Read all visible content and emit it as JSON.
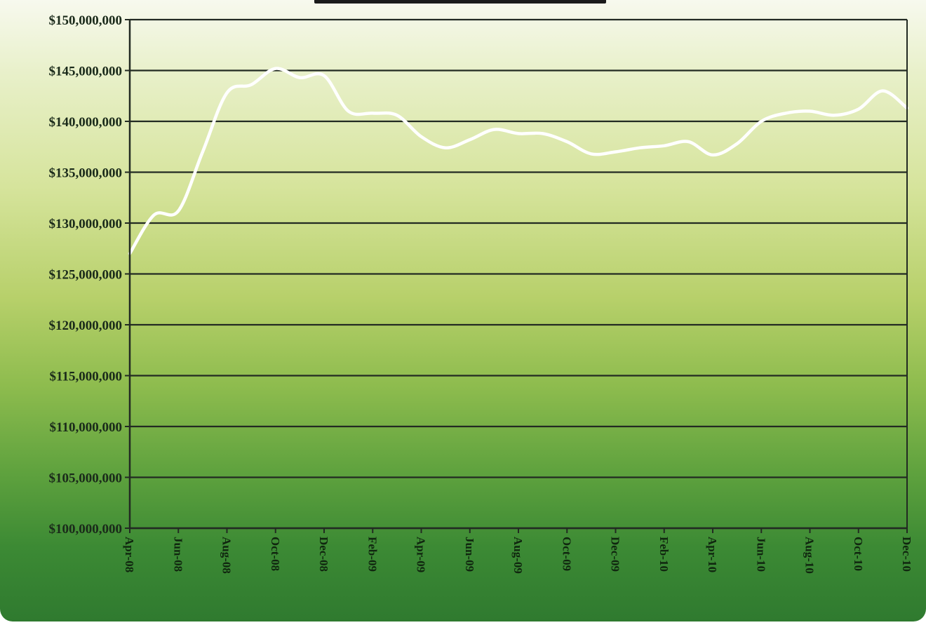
{
  "chart_data": {
    "type": "line",
    "title": "",
    "xlabel": "",
    "ylabel": "",
    "ylim": [
      100000000,
      150000000
    ],
    "y_step": 5000000,
    "y_tick_labels": [
      "$100,000,000",
      "$105,000,000",
      "$110,000,000",
      "$115,000,000",
      "$120,000,000",
      "$125,000,000",
      "$130,000,000",
      "$135,000,000",
      "$140,000,000",
      "$145,000,000",
      "$150,000,000"
    ],
    "x_tick_labels": [
      "Apr-08",
      "Jun-08",
      "Aug-08",
      "Oct-08",
      "Dec-08",
      "Feb-09",
      "Apr-09",
      "Jun-09",
      "Aug-09",
      "Oct-09",
      "Dec-09",
      "Feb-10",
      "Apr-10",
      "Jun-10",
      "Aug-10",
      "Oct-10",
      "Dec-10"
    ],
    "grid": true,
    "legend": "none",
    "line_color": "#ffffff",
    "series": [
      {
        "x": [
          "Apr-08",
          "May-08",
          "Jun-08",
          "Jul-08",
          "Aug-08",
          "Sep-08",
          "Oct-08",
          "Nov-08",
          "Dec-08",
          "Jan-09",
          "Feb-09",
          "Mar-09",
          "Apr-09",
          "May-09",
          "Jun-09",
          "Jul-09",
          "Aug-09",
          "Sep-09",
          "Oct-09",
          "Nov-09",
          "Dec-09",
          "Jan-10",
          "Feb-10",
          "Mar-10",
          "Apr-10",
          "May-10",
          "Jun-10",
          "Jul-10",
          "Aug-10",
          "Sep-10",
          "Oct-10",
          "Nov-10",
          "Dec-10"
        ],
        "values": [
          127000000,
          130800000,
          131200000,
          137000000,
          142800000,
          143600000,
          145200000,
          144300000,
          144500000,
          141000000,
          140800000,
          140600000,
          138500000,
          137400000,
          138200000,
          139200000,
          138800000,
          138800000,
          138000000,
          136800000,
          137000000,
          137400000,
          137600000,
          138000000,
          136700000,
          137800000,
          140000000,
          140800000,
          141000000,
          140600000,
          141200000,
          143000000,
          141300000
        ]
      }
    ]
  }
}
